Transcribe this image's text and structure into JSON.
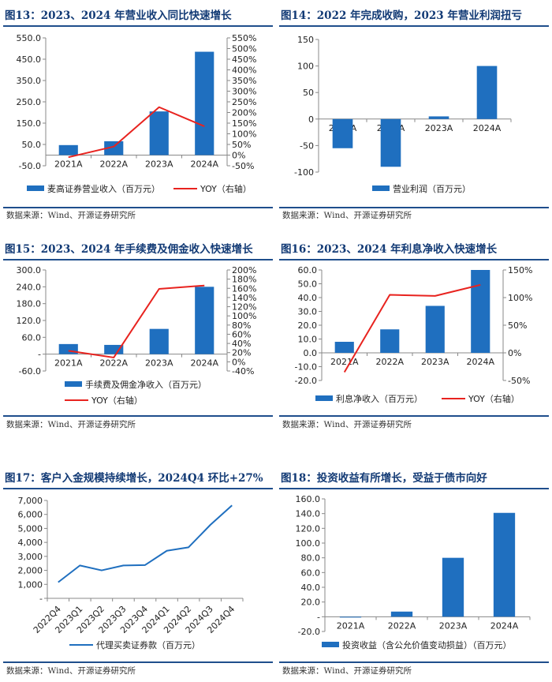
{
  "colors": {
    "bar": "#1f6fbf",
    "line": "#e8231f",
    "line_blue": "#1f6fbf",
    "title": "#123a75"
  },
  "chart_data": [
    {
      "id": "fig13",
      "type": "bar+line",
      "title": "图13：2023、2024 年营业收入同比快速增长",
      "categories": [
        "2021A",
        "2022A",
        "2023A",
        "2024A"
      ],
      "series": [
        {
          "name": "麦高证券营业收入（百万元）",
          "kind": "bar",
          "axis": "left",
          "values": [
            47,
            65,
            205,
            485
          ]
        },
        {
          "name": "YOY（右轴）",
          "kind": "line",
          "axis": "right",
          "values": [
            -10,
            40,
            225,
            135
          ]
        }
      ],
      "ylim_left": [
        -50,
        550
      ],
      "ticks_left": [
        "-50.0",
        "50.0",
        "150.0",
        "250.0",
        "350.0",
        "450.0",
        "550.0"
      ],
      "ylim_right": [
        -50,
        550
      ],
      "ticks_right": [
        "-50%",
        "0%",
        "50%",
        "100%",
        "150%",
        "200%",
        "250%",
        "300%",
        "350%",
        "400%",
        "450%",
        "500%",
        "550%"
      ],
      "source": "数据来源：Wind、开源证券研究所"
    },
    {
      "id": "fig14",
      "type": "bar",
      "title": "图14：2022 年完成收购，2023 年营业利润扭亏",
      "categories": [
        "2021A",
        "2022A",
        "2023A",
        "2024A"
      ],
      "series": [
        {
          "name": "营业利润（百万元）",
          "kind": "bar",
          "axis": "left",
          "values": [
            -55,
            -90,
            5,
            100
          ]
        }
      ],
      "ylim_left": [
        -100,
        150
      ],
      "ticks_left": [
        "-100",
        "-50",
        "0",
        "50",
        "100",
        "150"
      ],
      "source": "数据来源：Wind、开源证券研究所"
    },
    {
      "id": "fig15",
      "type": "bar+line",
      "title": "图15：2023、2024 年手续费及佣金收入快速增长",
      "categories": [
        "2021A",
        "2022A",
        "2023A",
        "2024A"
      ],
      "series": [
        {
          "name": "手续费及佣金净收入（百万元）",
          "kind": "bar",
          "axis": "left",
          "values": [
            36,
            33,
            90,
            240
          ]
        },
        {
          "name": "YOY（右轴）",
          "kind": "line",
          "axis": "right",
          "values": [
            8,
            -8,
            155,
            163
          ]
        }
      ],
      "ylim_left": [
        -60,
        300
      ],
      "ticks_left": [
        "-60.0",
        "-",
        "60.0",
        "120.0",
        "180.0",
        "240.0",
        "300.0"
      ],
      "ylim_right": [
        -40,
        200
      ],
      "ticks_right": [
        "-40%",
        "0%",
        "20%",
        "40%",
        "60%",
        "80%",
        "100%",
        "120%",
        "140%",
        "160%",
        "180%",
        "200%"
      ],
      "source": "数据来源：Wind、开源证券研究所"
    },
    {
      "id": "fig16",
      "type": "bar+line",
      "title": "图16：2023、2024 年利息净收入快速增长",
      "categories": [
        "2021A",
        "2022A",
        "2023A",
        "2024A"
      ],
      "series": [
        {
          "name": "利息净收入（百万元）",
          "kind": "bar",
          "axis": "left",
          "values": [
            8,
            17,
            34,
            60
          ]
        },
        {
          "name": "YOY（右轴）",
          "kind": "line",
          "axis": "right",
          "values": [
            -35,
            105,
            103,
            123
          ]
        }
      ],
      "ylim_left": [
        -20,
        60
      ],
      "ticks_left": [
        "-20.0",
        "-10.0",
        "0.0",
        "10.0",
        "20.0",
        "30.0",
        "40.0",
        "50.0",
        "60.0"
      ],
      "ylim_right": [
        -50,
        150
      ],
      "ticks_right": [
        "-50%",
        "0%",
        "50%",
        "100%",
        "150%"
      ],
      "source": "数据来源：Wind、开源证券研究所"
    },
    {
      "id": "fig17",
      "type": "line",
      "title": "图17：客户入金规模持续增长，2024Q4 环比+27%",
      "categories": [
        "2022Q4",
        "2023Q1",
        "2023Q2",
        "2023Q3",
        "2023Q4",
        "2024Q1",
        "2024Q2",
        "2024Q3",
        "2024Q4"
      ],
      "series": [
        {
          "name": "代理买卖证券款（百万元）",
          "kind": "line",
          "axis": "left",
          "values": [
            1150,
            2350,
            2000,
            2350,
            2380,
            3400,
            3650,
            5250,
            6650
          ]
        }
      ],
      "ylim_left": [
        0,
        7000
      ],
      "ticks_left": [
        "-",
        "1,000",
        "2,000",
        "3,000",
        "4,000",
        "5,000",
        "6,000",
        "7,000"
      ],
      "source": "数据来源：Wind、开源证券研究所"
    },
    {
      "id": "fig18",
      "type": "bar",
      "title": "图18：投资收益有所增长，受益于债市向好",
      "categories": [
        "2021A",
        "2022A",
        "2023A",
        "2024A"
      ],
      "series": [
        {
          "name": "投资收益（含公允价值变动损益）（百万元）",
          "kind": "bar",
          "axis": "left",
          "values": [
            -1,
            7,
            80,
            141
          ]
        }
      ],
      "ylim_left": [
        -20,
        160
      ],
      "ticks_left": [
        "-20.0",
        "-",
        "20.0",
        "40.0",
        "60.0",
        "80.0",
        "100.0",
        "120.0",
        "140.0",
        "160.0"
      ],
      "source": "数据来源：Wind、开源证券研究所"
    }
  ]
}
